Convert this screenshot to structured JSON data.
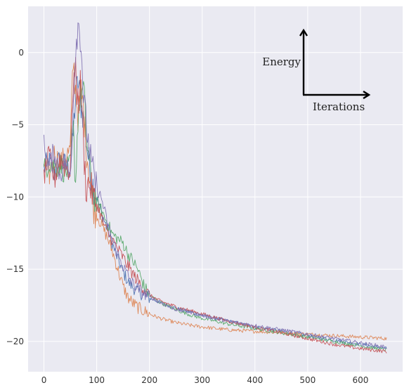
{
  "chart_data": {
    "type": "line",
    "title": "",
    "xlabel": "",
    "ylabel": "",
    "xlim": [
      -30,
      680
    ],
    "ylim": [
      -22.1,
      3.2
    ],
    "x_ticks": [
      0,
      100,
      200,
      300,
      400,
      500,
      600
    ],
    "y_ticks": [
      0,
      -5,
      -10,
      -15,
      -20
    ],
    "grid": true,
    "legend": "none",
    "background": "#eaeaf2",
    "annotations": [
      {
        "text": "Energy",
        "anchor": "vertical-arrow"
      },
      {
        "text": "Iterations",
        "anchor": "horizontal-arrow"
      }
    ],
    "series": [
      {
        "color": "#4c72b0",
        "x": [
          0,
          10,
          20,
          30,
          40,
          50,
          55,
          60,
          65,
          70,
          75,
          80,
          85,
          90,
          95,
          100,
          110,
          120,
          130,
          140,
          150,
          160,
          170,
          180,
          190,
          200,
          220,
          250,
          280,
          300,
          350,
          400,
          450,
          500,
          550,
          600,
          650
        ],
        "y": [
          -8.0,
          -7.6,
          -8.3,
          -7.4,
          -7.8,
          -8.1,
          -6.0,
          -3.0,
          -2.0,
          -3.5,
          -4.5,
          -6.0,
          -7.5,
          -8.8,
          -9.4,
          -10.0,
          -11.2,
          -12.2,
          -13.3,
          -14.3,
          -15.2,
          -15.9,
          -16.3,
          -16.6,
          -16.8,
          -17.0,
          -17.3,
          -17.7,
          -18.0,
          -18.2,
          -18.6,
          -19.0,
          -19.3,
          -19.6,
          -19.9,
          -20.2,
          -20.5
        ]
      },
      {
        "color": "#dd8452",
        "x": [
          0,
          10,
          20,
          30,
          40,
          50,
          55,
          60,
          65,
          70,
          75,
          80,
          85,
          90,
          95,
          100,
          110,
          120,
          130,
          140,
          150,
          160,
          170,
          180,
          190,
          200,
          220,
          250,
          280,
          300,
          350,
          400,
          450,
          500,
          550,
          600,
          650
        ],
        "y": [
          -7.6,
          -8.5,
          -7.0,
          -7.8,
          -7.2,
          -6.8,
          -0.5,
          -2.5,
          -4.5,
          -2.5,
          -4.0,
          -6.5,
          -8.0,
          -9.5,
          -10.8,
          -11.2,
          -12.0,
          -12.8,
          -13.8,
          -15.0,
          -16.2,
          -17.0,
          -17.4,
          -17.7,
          -17.9,
          -18.1,
          -18.4,
          -18.7,
          -18.9,
          -19.0,
          -19.2,
          -19.3,
          -19.4,
          -19.5,
          -19.6,
          -19.7,
          -19.8
        ]
      },
      {
        "color": "#55a868",
        "x": [
          0,
          10,
          20,
          30,
          40,
          50,
          55,
          60,
          65,
          70,
          75,
          80,
          85,
          90,
          95,
          100,
          110,
          120,
          130,
          140,
          150,
          160,
          170,
          180,
          190,
          200,
          220,
          250,
          280,
          300,
          350,
          400,
          450,
          500,
          550,
          600,
          650
        ],
        "y": [
          -8.2,
          -7.5,
          -8.0,
          -7.7,
          -8.3,
          -7.9,
          -5.0,
          -9.0,
          -4.0,
          -3.0,
          -2.5,
          -5.5,
          -7.5,
          -9.2,
          -9.8,
          -10.4,
          -11.0,
          -11.8,
          -12.6,
          -12.9,
          -13.2,
          -14.0,
          -14.5,
          -15.2,
          -16.2,
          -16.8,
          -17.3,
          -17.8,
          -18.2,
          -18.4,
          -18.8,
          -19.1,
          -19.4,
          -19.7,
          -20.0,
          -20.3,
          -20.6
        ]
      },
      {
        "color": "#c44e52",
        "x": [
          0,
          10,
          20,
          30,
          40,
          50,
          55,
          60,
          65,
          70,
          75,
          80,
          85,
          90,
          95,
          100,
          110,
          120,
          130,
          140,
          150,
          160,
          170,
          180,
          190,
          200,
          220,
          250,
          280,
          300,
          350,
          400,
          450,
          500,
          550,
          600,
          650
        ],
        "y": [
          -8.5,
          -7.2,
          -8.8,
          -7.3,
          -7.9,
          -8.2,
          -2.0,
          -1.5,
          -3.5,
          -2.0,
          -6.5,
          -9.5,
          -9.0,
          -9.5,
          -10.2,
          -10.5,
          -11.5,
          -12.5,
          -13.0,
          -13.6,
          -14.2,
          -14.8,
          -15.4,
          -15.9,
          -16.4,
          -16.8,
          -17.2,
          -17.6,
          -17.9,
          -18.1,
          -18.6,
          -19.0,
          -19.4,
          -19.8,
          -20.2,
          -20.5,
          -20.7
        ]
      },
      {
        "color": "#8172b2",
        "x": [
          0,
          10,
          20,
          30,
          40,
          50,
          55,
          60,
          65,
          70,
          75,
          80,
          85,
          90,
          95,
          100,
          110,
          120,
          130,
          140,
          150,
          160,
          170,
          180,
          190,
          200,
          220,
          250,
          280,
          300,
          350,
          400,
          450,
          500,
          550,
          600,
          650
        ],
        "y": [
          -6.5,
          -8.0,
          -6.8,
          -8.4,
          -7.5,
          -8.6,
          -4.0,
          0.5,
          2.0,
          1.0,
          -3.0,
          -5.0,
          -6.5,
          -7.8,
          -8.7,
          -9.4,
          -10.2,
          -11.8,
          -13.0,
          -14.0,
          -14.8,
          -15.5,
          -16.1,
          -16.4,
          -16.7,
          -16.9,
          -17.3,
          -17.8,
          -18.0,
          -18.2,
          -18.6,
          -18.9,
          -19.2,
          -19.5,
          -19.8,
          -20.1,
          -20.4
        ]
      }
    ]
  }
}
